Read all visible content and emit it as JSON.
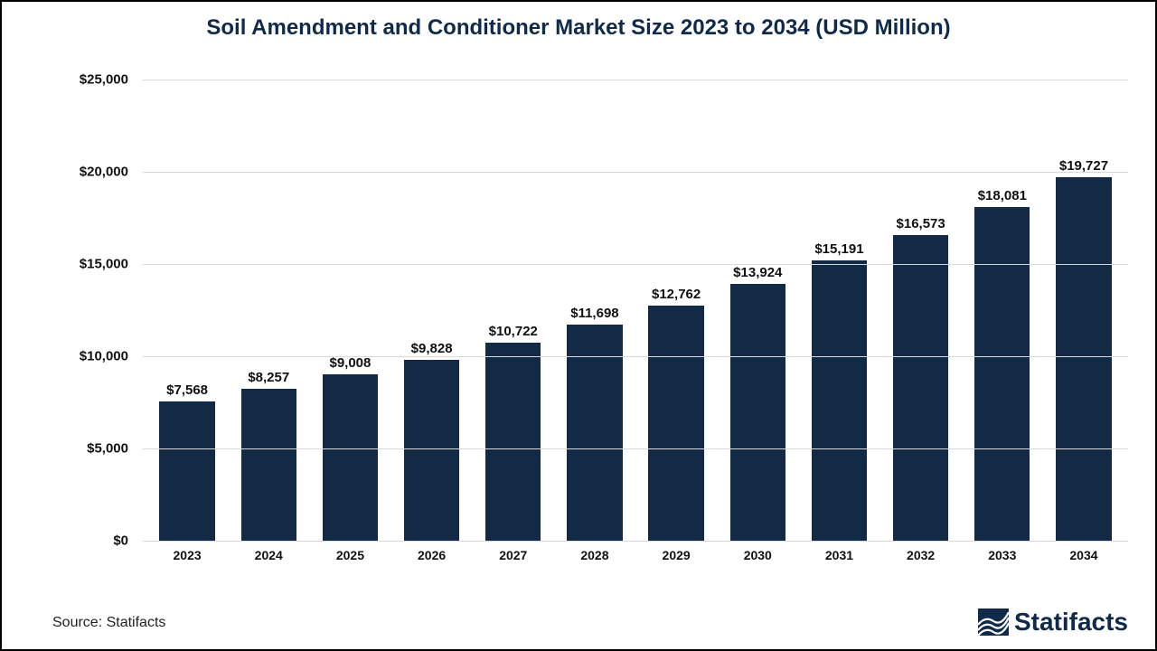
{
  "chart": {
    "type": "bar",
    "title": "Soil Amendment and Conditioner Market Size 2023 to 2034 (USD Million)",
    "title_fontsize": 24,
    "title_color": "#0f2a4a",
    "categories": [
      "2023",
      "2024",
      "2025",
      "2026",
      "2027",
      "2028",
      "2029",
      "2030",
      "2031",
      "2032",
      "2033",
      "2034"
    ],
    "values": [
      7568,
      8257,
      9008,
      9828,
      10722,
      11698,
      12762,
      13924,
      15191,
      16573,
      18081,
      19727
    ],
    "value_labels": [
      "$7,568",
      "$8,257",
      "$9,008",
      "$9,828",
      "$10,722",
      "$11,698",
      "$12,762",
      "$13,924",
      "$15,191",
      "$16,573",
      "$18,081",
      "$19,727"
    ],
    "bar_color": "#132a46",
    "background_color": "#ffffff",
    "grid_color": "#d9d9d9",
    "border_color": "#000000",
    "y": {
      "min": 0,
      "max": 25000,
      "tick_step": 5000,
      "tick_labels": [
        "$0",
        "$5,000",
        "$10,000",
        "$15,000",
        "$20,000",
        "$25,000"
      ],
      "label_fontsize": 15,
      "label_color": "#111111"
    },
    "x": {
      "label_fontsize": 14,
      "label_color": "#111111"
    },
    "value_label_fontsize": 15,
    "bar_width_ratio": 0.68
  },
  "footer": {
    "source_text": "Source: Statifacts",
    "source_fontsize": 16,
    "brand_text": "Statifacts",
    "brand_fontsize": 28,
    "brand_color": "#0f2a4a"
  }
}
